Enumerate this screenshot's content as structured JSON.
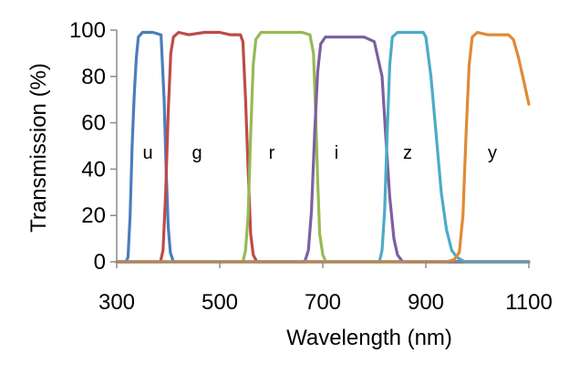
{
  "chart_data": {
    "type": "line",
    "title": "",
    "xlabel": "Wavelength (nm)",
    "ylabel": "Transmission (%)",
    "xlim": [
      300,
      1100
    ],
    "ylim": [
      0,
      100
    ],
    "xticks": [
      300,
      500,
      700,
      900,
      1100
    ],
    "yticks": [
      0,
      20,
      40,
      60,
      80,
      100
    ],
    "xtick_labels": [
      "300",
      "500",
      "700",
      "900",
      "1100"
    ],
    "ytick_labels": [
      "0",
      "20",
      "40",
      "60",
      "80",
      "100"
    ],
    "grid": false,
    "legend": "none",
    "series": [
      {
        "name": "u",
        "color": "#4a7ebb",
        "label_at": [
          315,
          48
        ],
        "points": [
          [
            300,
            0
          ],
          [
            318,
            0
          ],
          [
            322,
            2
          ],
          [
            326,
            20
          ],
          [
            330,
            50
          ],
          [
            334,
            72
          ],
          [
            338,
            88
          ],
          [
            342,
            97
          ],
          [
            350,
            99
          ],
          [
            370,
            99
          ],
          [
            386,
            98
          ],
          [
            392,
            70
          ],
          [
            396,
            40
          ],
          [
            400,
            15
          ],
          [
            404,
            4
          ],
          [
            410,
            0
          ],
          [
            1100,
            0
          ]
        ]
      },
      {
        "name": "g",
        "color": "#be4b48",
        "label_at": [
          352,
          48
        ],
        "points": [
          [
            300,
            0
          ],
          [
            385,
            0
          ],
          [
            390,
            5
          ],
          [
            395,
            30
          ],
          [
            400,
            65
          ],
          [
            405,
            90
          ],
          [
            410,
            97
          ],
          [
            420,
            99
          ],
          [
            440,
            98
          ],
          [
            470,
            99
          ],
          [
            500,
            99
          ],
          [
            520,
            98
          ],
          [
            540,
            98
          ],
          [
            545,
            95
          ],
          [
            550,
            70
          ],
          [
            555,
            40
          ],
          [
            560,
            12
          ],
          [
            565,
            3
          ],
          [
            572,
            0
          ],
          [
            1100,
            0
          ]
        ]
      },
      {
        "name": "r",
        "color": "#98b954",
        "label_at": [
          608,
          48
        ],
        "points": [
          [
            300,
            0
          ],
          [
            545,
            0
          ],
          [
            550,
            5
          ],
          [
            555,
            20
          ],
          [
            560,
            55
          ],
          [
            565,
            85
          ],
          [
            570,
            96
          ],
          [
            580,
            99
          ],
          [
            600,
            99
          ],
          [
            630,
            99
          ],
          [
            660,
            99
          ],
          [
            675,
            98
          ],
          [
            682,
            90
          ],
          [
            686,
            65
          ],
          [
            690,
            35
          ],
          [
            694,
            12
          ],
          [
            700,
            3
          ],
          [
            706,
            0
          ],
          [
            1100,
            0
          ]
        ]
      },
      {
        "name": "i",
        "color": "#7d60a0",
        "label_at": [
          703,
          48
        ],
        "points": [
          [
            300,
            0
          ],
          [
            665,
            0
          ],
          [
            672,
            5
          ],
          [
            678,
            22
          ],
          [
            684,
            55
          ],
          [
            690,
            82
          ],
          [
            696,
            94
          ],
          [
            705,
            97
          ],
          [
            720,
            97
          ],
          [
            750,
            97
          ],
          [
            780,
            97
          ],
          [
            800,
            95
          ],
          [
            815,
            80
          ],
          [
            822,
            55
          ],
          [
            830,
            28
          ],
          [
            838,
            10
          ],
          [
            845,
            3
          ],
          [
            855,
            0
          ],
          [
            1100,
            0
          ]
        ]
      },
      {
        "name": "z",
        "color": "#4bacc6",
        "label_at": [
          826,
          48
        ],
        "points": [
          [
            300,
            0
          ],
          [
            810,
            0
          ],
          [
            815,
            5
          ],
          [
            820,
            22
          ],
          [
            825,
            55
          ],
          [
            830,
            85
          ],
          [
            835,
            97
          ],
          [
            845,
            99
          ],
          [
            870,
            99
          ],
          [
            895,
            99
          ],
          [
            900,
            97
          ],
          [
            910,
            80
          ],
          [
            920,
            55
          ],
          [
            930,
            30
          ],
          [
            940,
            14
          ],
          [
            950,
            5
          ],
          [
            960,
            2
          ],
          [
            975,
            0
          ],
          [
            1100,
            0
          ]
        ]
      },
      {
        "name": "y",
        "color": "#e08a36",
        "label_at": [
          1000,
          48
        ],
        "points": [
          [
            300,
            0
          ],
          [
            940,
            0
          ],
          [
            955,
            1
          ],
          [
            965,
            4
          ],
          [
            972,
            20
          ],
          [
            978,
            55
          ],
          [
            984,
            85
          ],
          [
            990,
            97
          ],
          [
            1000,
            99
          ],
          [
            1020,
            98
          ],
          [
            1040,
            98
          ],
          [
            1060,
            98
          ],
          [
            1070,
            96
          ],
          [
            1080,
            88
          ],
          [
            1090,
            78
          ],
          [
            1100,
            68
          ]
        ]
      }
    ]
  }
}
